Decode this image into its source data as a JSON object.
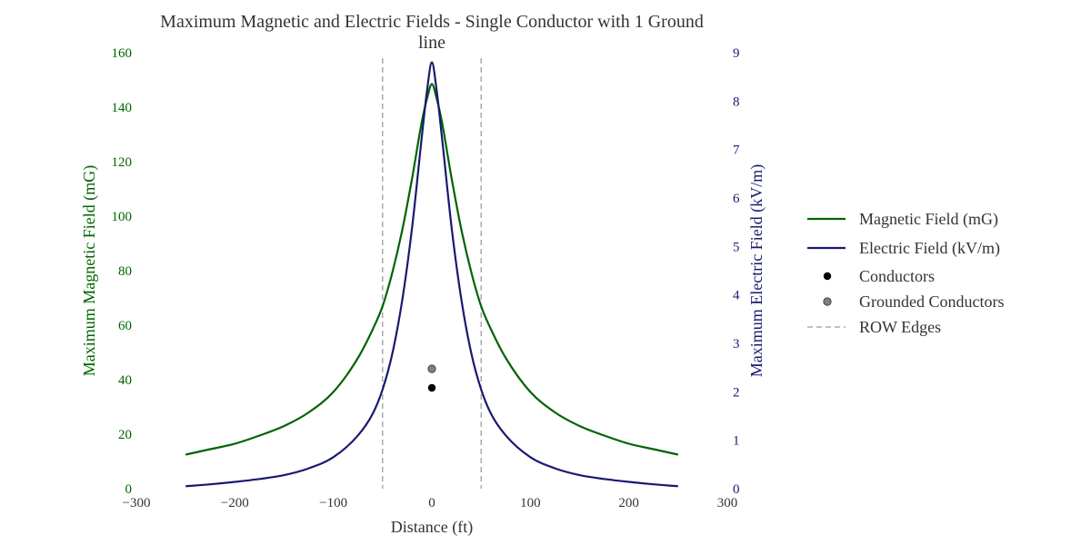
{
  "chart_data": {
    "type": "line",
    "title_line1": "Maximum Magnetic and Electric Fields - Single Conductor with 1 Ground",
    "title_line2": "line",
    "xlabel": "Distance (ft)",
    "ylabel_left": "Maximum Magnetic Field (mG)",
    "ylabel_right": "Maximum Electric Field (kV/m)",
    "xlim": [
      -300,
      300
    ],
    "ylim_left": [
      0,
      160
    ],
    "ylim_right": [
      0,
      9
    ],
    "x_ticks": [
      "−300",
      "−200",
      "−100",
      "0",
      "100",
      "200",
      "300"
    ],
    "x_tick_values": [
      -300,
      -200,
      -100,
      0,
      100,
      200,
      300
    ],
    "y_left_ticks": [
      "0",
      "20",
      "40",
      "60",
      "80",
      "100",
      "120",
      "140",
      "160"
    ],
    "y_left_tick_values": [
      0,
      20,
      40,
      60,
      80,
      100,
      120,
      140,
      160
    ],
    "y_right_ticks": [
      "0",
      "1",
      "2",
      "3",
      "4",
      "5",
      "6",
      "7",
      "8",
      "9"
    ],
    "y_right_tick_values": [
      0,
      1,
      2,
      3,
      4,
      5,
      6,
      7,
      8,
      9
    ],
    "grid": false,
    "legend_position": "right",
    "colors": {
      "magnetic": "#006400",
      "electric": "#191970",
      "conductor": "#000000",
      "grounded": "#808080",
      "row": "#808080"
    },
    "series": [
      {
        "name": "Magnetic Field (mG)",
        "axis": "left",
        "x": [
          -250,
          -225,
          -200,
          -175,
          -150,
          -125,
          -100,
          -75,
          -60,
          -50,
          -40,
          -30,
          -20,
          -10,
          -5,
          0,
          5,
          10,
          20,
          30,
          40,
          50,
          60,
          75,
          100,
          125,
          150,
          175,
          200,
          225,
          250
        ],
        "y": [
          12.5,
          14.5,
          16.5,
          19.5,
          23,
          28,
          35.5,
          48,
          58.5,
          67,
          79.5,
          95,
          114,
          135,
          143,
          148.5,
          143,
          135,
          114,
          95,
          79.5,
          67,
          58.5,
          48,
          35.5,
          28,
          23,
          19.5,
          16.5,
          14.5,
          12.5
        ]
      },
      {
        "name": "Electric Field (kV/m)",
        "axis": "right",
        "x": [
          -250,
          -225,
          -200,
          -175,
          -150,
          -125,
          -100,
          -75,
          -60,
          -50,
          -40,
          -30,
          -20,
          -10,
          -5,
          0,
          5,
          10,
          20,
          30,
          40,
          50,
          60,
          75,
          100,
          125,
          150,
          175,
          200,
          225,
          250
        ],
        "y": [
          0.05,
          0.09,
          0.14,
          0.2,
          0.28,
          0.42,
          0.65,
          1.1,
          1.55,
          2.05,
          2.8,
          3.9,
          5.4,
          7.3,
          8.2,
          8.8,
          8.2,
          7.3,
          5.4,
          3.9,
          2.8,
          2.05,
          1.55,
          1.1,
          0.65,
          0.42,
          0.28,
          0.2,
          0.14,
          0.09,
          0.05
        ]
      }
    ],
    "conductors": [
      {
        "x": 0,
        "y": 37
      }
    ],
    "grounded_conductors": [
      {
        "x": 0,
        "y": 44
      }
    ],
    "row_edges": [
      -50,
      50
    ],
    "legend": [
      {
        "label": "Magnetic Field (mG)",
        "kind": "line",
        "key": "magnetic"
      },
      {
        "label": "Electric Field (kV/m)",
        "kind": "line",
        "key": "electric"
      },
      {
        "label": "Conductors",
        "kind": "dot",
        "key": "conductor"
      },
      {
        "label": "Grounded Conductors",
        "kind": "dot",
        "key": "grounded"
      },
      {
        "label": "ROW Edges",
        "kind": "dash",
        "key": "row"
      }
    ]
  }
}
